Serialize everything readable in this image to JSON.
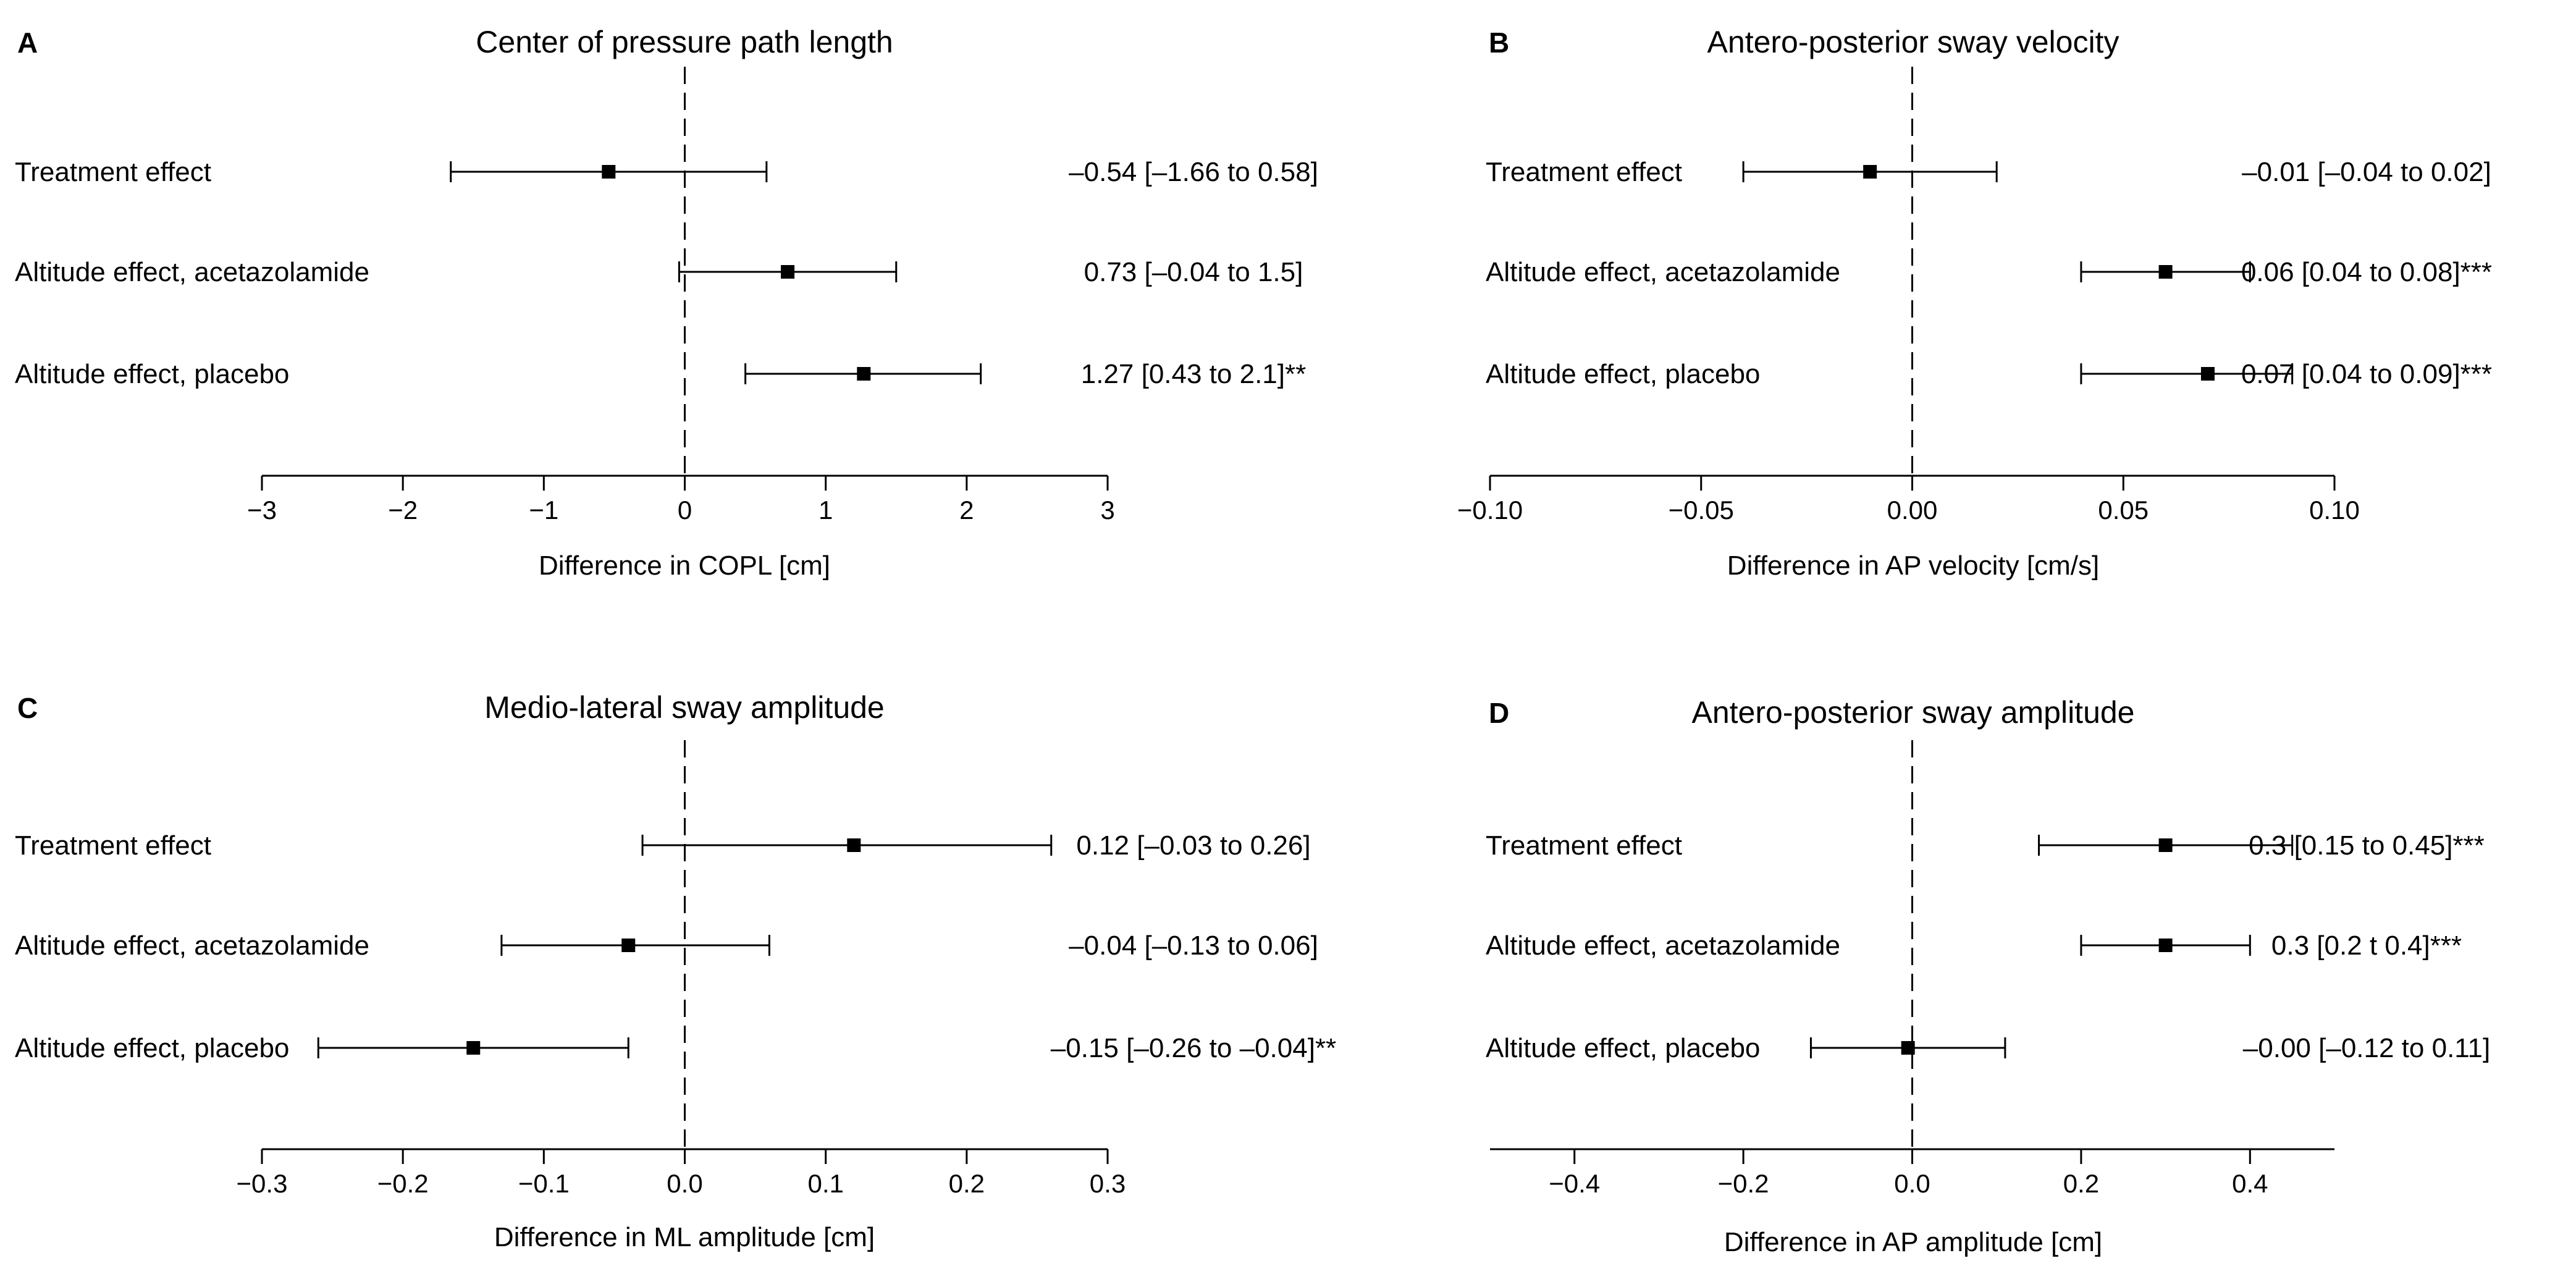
{
  "chart_data": [
    {
      "type": "forest",
      "letter": "A",
      "title": "Center of pressure path length",
      "xlabel": "Difference in COPL [cm]",
      "xlim": [
        -3,
        3
      ],
      "ticks": [
        -3,
        -2,
        -1,
        0,
        1,
        2,
        3
      ],
      "tick_labels": [
        "−3",
        "−2",
        "−1",
        "0",
        "1",
        "2",
        "3"
      ],
      "rows": [
        {
          "label": "Treatment effect",
          "estimate": -0.54,
          "lower": -1.66,
          "upper": 0.58,
          "text": "–0.54 [–1.66 to 0.58]"
        },
        {
          "label": "Altitude effect, acetazolamide",
          "estimate": 0.73,
          "lower": -0.04,
          "upper": 1.5,
          "text": "0.73 [–0.04 to 1.5]"
        },
        {
          "label": "Altitude effect, placebo",
          "estimate": 1.27,
          "lower": 0.43,
          "upper": 2.1,
          "text": "1.27 [0.43 to 2.1]**"
        }
      ]
    },
    {
      "type": "forest",
      "letter": "B",
      "title": "Antero-posterior sway velocity",
      "xlabel": "Difference in AP velocity [cm/s]",
      "xlim": [
        -0.1,
        0.1
      ],
      "ticks": [
        -0.1,
        -0.05,
        0,
        0.05,
        0.1
      ],
      "tick_labels": [
        "−0.10",
        "−0.05",
        "0.00",
        "0.05",
        "0.10"
      ],
      "rows": [
        {
          "label": "Treatment effect",
          "estimate": -0.01,
          "lower": -0.04,
          "upper": 0.02,
          "text": "–0.01 [–0.04 to 0.02]"
        },
        {
          "label": "Altitude effect, acetazolamide",
          "estimate": 0.06,
          "lower": 0.04,
          "upper": 0.08,
          "text": "0.06 [0.04 to 0.08]***"
        },
        {
          "label": "Altitude effect, placebo",
          "estimate": 0.07,
          "lower": 0.04,
          "upper": 0.09,
          "text": "0.07 [0.04 to 0.09]***"
        }
      ]
    },
    {
      "type": "forest",
      "letter": "C",
      "title": "Medio-lateral sway amplitude",
      "xlabel": "Difference in ML amplitude [cm]",
      "xlim": [
        -0.3,
        0.3
      ],
      "ticks": [
        -0.3,
        -0.2,
        -0.1,
        0,
        0.1,
        0.2,
        0.3
      ],
      "tick_labels": [
        "−0.3",
        "−0.2",
        "−0.1",
        "0.0",
        "0.1",
        "0.2",
        "0.3"
      ],
      "rows": [
        {
          "label": "Treatment effect",
          "estimate": 0.12,
          "lower": -0.03,
          "upper": 0.26,
          "text": "0.12 [–0.03 to 0.26]"
        },
        {
          "label": "Altitude effect, acetazolamide",
          "estimate": -0.04,
          "lower": -0.13,
          "upper": 0.06,
          "text": "–0.04 [–0.13 to 0.06]"
        },
        {
          "label": "Altitude effect, placebo",
          "estimate": -0.15,
          "lower": -0.26,
          "upper": -0.04,
          "text": "–0.15 [–0.26 to –0.04]**"
        }
      ]
    },
    {
      "type": "forest",
      "letter": "D",
      "title": "Antero-posterior sway amplitude",
      "xlabel": "Difference in AP amplitude [cm]",
      "xlim": [
        -0.5,
        0.5
      ],
      "ticks": [
        -0.4,
        -0.2,
        0,
        0.2,
        0.4
      ],
      "tick_labels": [
        "−0.4",
        "−0.2",
        "0.0",
        "0.2",
        "0.4"
      ],
      "rows": [
        {
          "label": "Treatment effect",
          "estimate": 0.3,
          "lower": 0.15,
          "upper": 0.45,
          "text": "0.3 [0.15 to 0.45]***"
        },
        {
          "label": "Altitude effect, acetazolamide",
          "estimate": 0.3,
          "lower": 0.2,
          "upper": 0.4,
          "text": "0.3 [0.2 t 0.4]***"
        },
        {
          "label": "Altitude effect, placebo",
          "estimate": -0.005,
          "lower": -0.12,
          "upper": 0.11,
          "text": "–0.00 [–0.12 to 0.11]"
        }
      ]
    }
  ]
}
